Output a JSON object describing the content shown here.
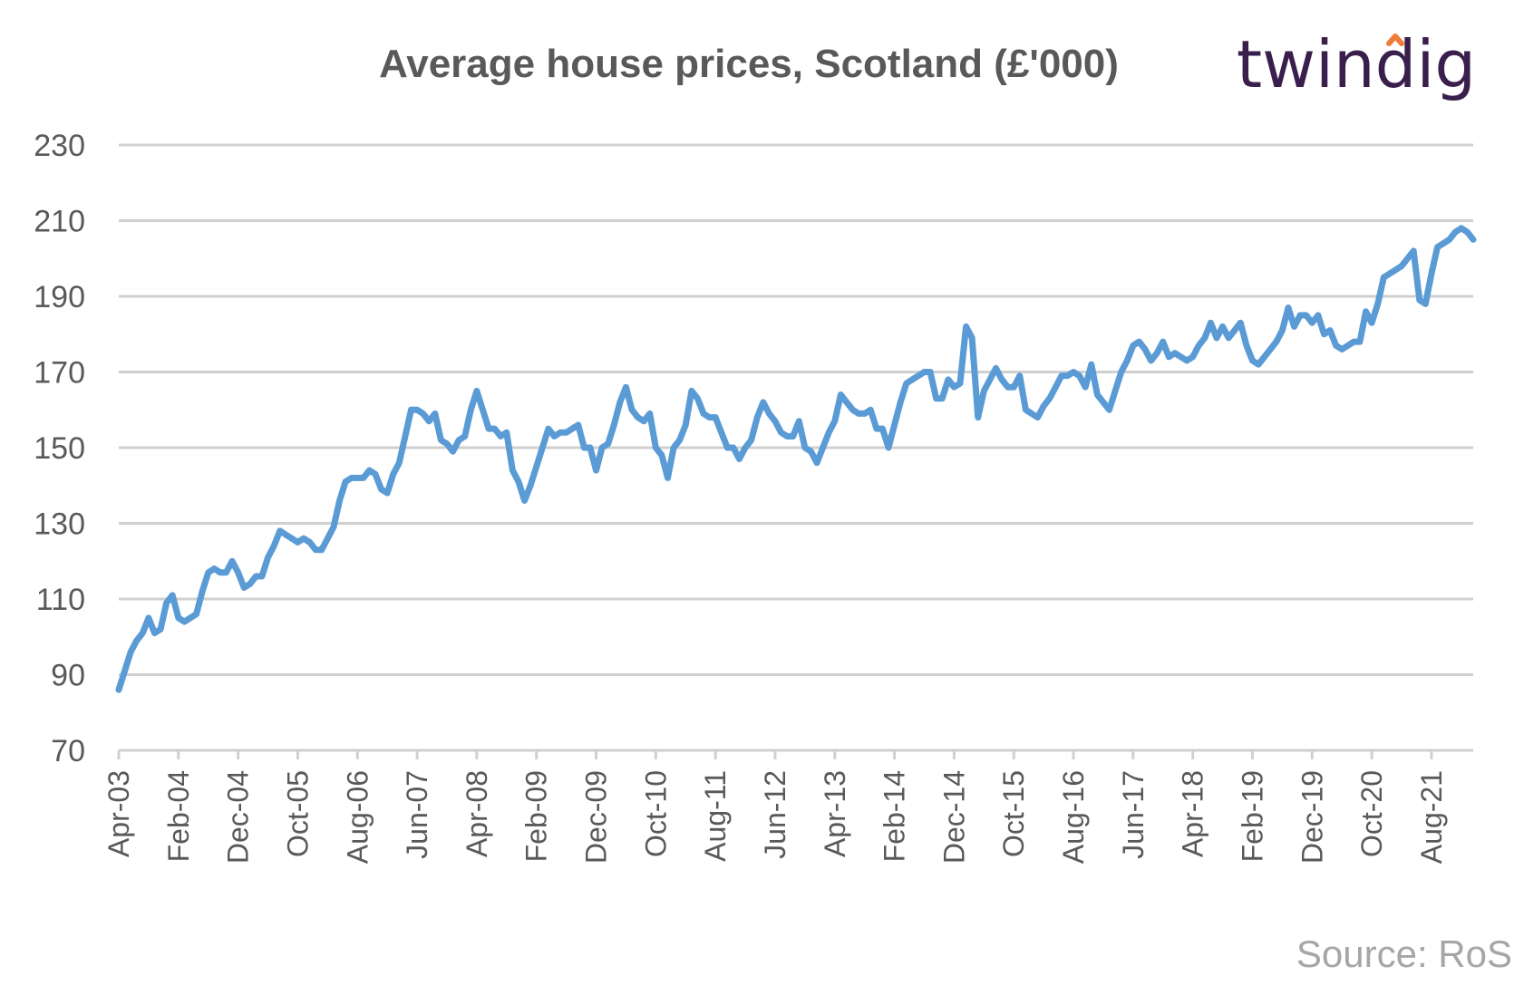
{
  "brand": {
    "name": "twindig",
    "accent_color": "#f07c3a",
    "text_color": "#3a1f4d"
  },
  "source": "Source: RoS",
  "chart_data": {
    "type": "line",
    "title": "Average house prices, Scotland (£'000)",
    "xlabel": "",
    "ylabel": "",
    "ylim": [
      70,
      230
    ],
    "yticks": [
      70,
      90,
      110,
      130,
      150,
      170,
      190,
      210,
      230
    ],
    "xtick_labels": [
      "Apr-03",
      "Feb-04",
      "Dec-04",
      "Oct-05",
      "Aug-06",
      "Jun-07",
      "Apr-08",
      "Feb-09",
      "Dec-09",
      "Oct-10",
      "Aug-11",
      "Jun-12",
      "Apr-13",
      "Feb-14",
      "Dec-14",
      "Oct-15",
      "Aug-16",
      "Jun-17",
      "Apr-18",
      "Feb-19",
      "Dec-19",
      "Oct-20",
      "Aug-21"
    ],
    "x_start": "Apr-03",
    "x_end": "Jan-22",
    "grid": true,
    "legend": "none",
    "line_color": "#5b9bd5",
    "series": [
      {
        "values": [
          86,
          91,
          96,
          99,
          101,
          105,
          101,
          102,
          109,
          111,
          105,
          104,
          105,
          106,
          112,
          117,
          118,
          117,
          117,
          120,
          117,
          113,
          114,
          116,
          116,
          121,
          124,
          128,
          127,
          126,
          125,
          126,
          125,
          123,
          123,
          126,
          129,
          136,
          141,
          142,
          142,
          142,
          144,
          143,
          139,
          138,
          143,
          146,
          153,
          160,
          160,
          159,
          157,
          159,
          152,
          151,
          149,
          152,
          153,
          160,
          165,
          160,
          155,
          155,
          153,
          154,
          144,
          141,
          136,
          140,
          145,
          150,
          155,
          153,
          154,
          154,
          155,
          156,
          150,
          150,
          144,
          150,
          151,
          156,
          162,
          166,
          160,
          158,
          157,
          159,
          150,
          148,
          142,
          150,
          152,
          156,
          165,
          163,
          159,
          158,
          158,
          154,
          150,
          150,
          147,
          150,
          152,
          158,
          162,
          159,
          157,
          154,
          153,
          153,
          157,
          150,
          149,
          146,
          150,
          154,
          157,
          164,
          162,
          160,
          159,
          159,
          160,
          155,
          155,
          150,
          156,
          162,
          167,
          168,
          169,
          170,
          170,
          163,
          163,
          168,
          166,
          167,
          182,
          179,
          158,
          165,
          168,
          171,
          168,
          166,
          166,
          169,
          160,
          159,
          158,
          161,
          163,
          166,
          169,
          169,
          170,
          169,
          166,
          172,
          164,
          162,
          160,
          165,
          170,
          173,
          177,
          178,
          176,
          173,
          175,
          178,
          174,
          175,
          174,
          173,
          174,
          177,
          179,
          183,
          179,
          182,
          179,
          181,
          183,
          177,
          173,
          172,
          174,
          176,
          178,
          181,
          187,
          182,
          185,
          185,
          183,
          185,
          180,
          181,
          177,
          176,
          177,
          178,
          178,
          186,
          183,
          188,
          195,
          196,
          197,
          198,
          200,
          202,
          189,
          188,
          196,
          203,
          204,
          205,
          207,
          208,
          207,
          205
        ]
      }
    ]
  }
}
